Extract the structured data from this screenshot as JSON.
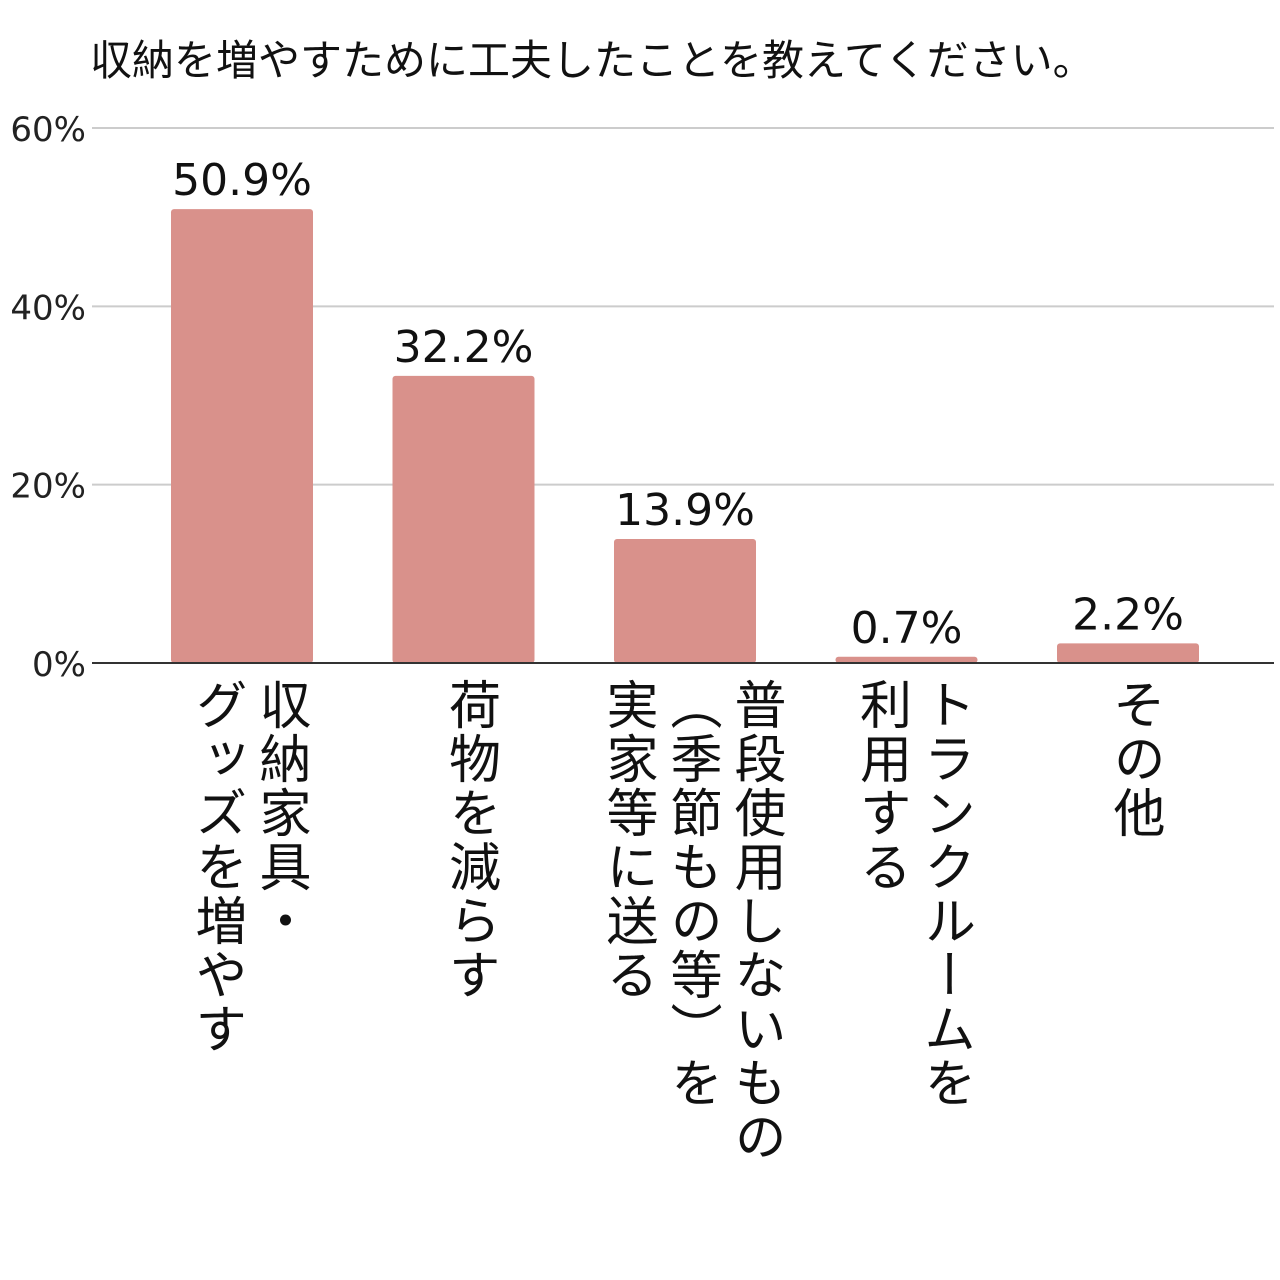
{
  "chart_data": {
    "type": "bar",
    "title": "収納を増やすために工夫したことを教えてください。",
    "xlabel": "",
    "ylabel": "",
    "ylim": [
      0,
      60
    ],
    "yticks": [
      0,
      20,
      40,
      60
    ],
    "ytick_labels": [
      "0%",
      "20%",
      "40%",
      "60%"
    ],
    "grid": true,
    "categories": [
      "収納家具・\nグッズを増やす",
      "荷物を減らす",
      "普段使用しないもの\n（季節もの等）を\n実家等に送る",
      "トランクルームを\n利用する",
      "その他"
    ],
    "values": [
      50.9,
      32.2,
      13.9,
      0.7,
      2.2
    ],
    "data_labels": [
      "50.9%",
      "32.2%",
      "13.9%",
      "0.7%",
      "2.2%"
    ],
    "bar_color": "#d9918b"
  }
}
